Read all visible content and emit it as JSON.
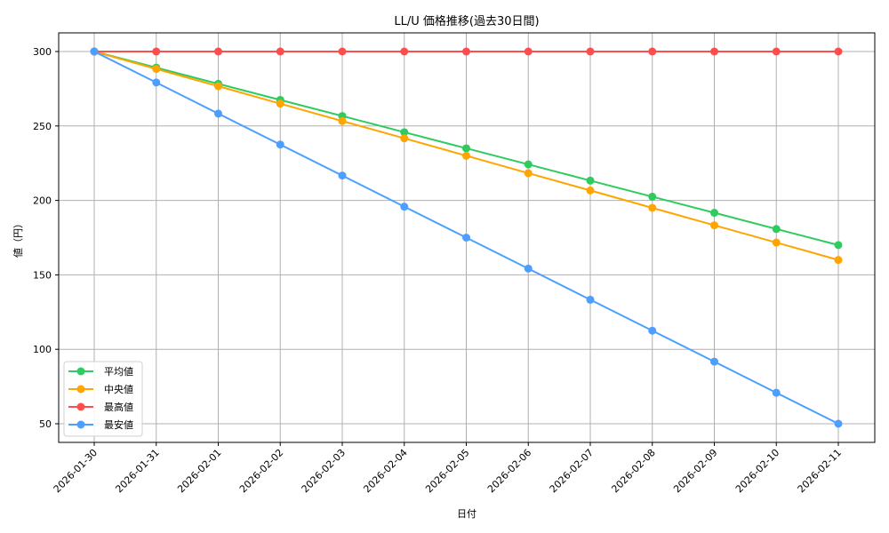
{
  "chart_data": {
    "type": "line",
    "title": "LL/U 価格推移(過去30日間)",
    "xlabel": "日付",
    "ylabel": "値（円）",
    "x": [
      "2026-01-30",
      "2026-01-31",
      "2026-02-01",
      "2026-02-02",
      "2026-02-03",
      "2026-02-04",
      "2026-02-05",
      "2026-02-06",
      "2026-02-07",
      "2026-02-08",
      "2026-02-09",
      "2026-02-10",
      "2026-02-11"
    ],
    "ylim": [
      37,
      313
    ],
    "yticks": [
      50,
      100,
      150,
      200,
      250,
      300
    ],
    "grid": true,
    "legend_position": "lower left",
    "series": [
      {
        "name": "平均値",
        "color": "#2ecc5f",
        "marker": "circle",
        "values": [
          300,
          289.2,
          278.3,
          267.5,
          256.7,
          245.8,
          235,
          224.2,
          213.3,
          202.5,
          191.7,
          180.8,
          170
        ]
      },
      {
        "name": "中央値",
        "color": "#ffa500",
        "marker": "circle",
        "values": [
          300,
          288.3,
          276.7,
          265,
          253.3,
          241.7,
          230,
          218.3,
          206.7,
          195,
          183.3,
          171.7,
          160
        ]
      },
      {
        "name": "最高値",
        "color": "#ff4d4d",
        "marker": "circle",
        "values": [
          300,
          300,
          300,
          300,
          300,
          300,
          300,
          300,
          300,
          300,
          300,
          300,
          300
        ]
      },
      {
        "name": "最安値",
        "color": "#4d9fff",
        "marker": "circle",
        "values": [
          300,
          279.2,
          258.3,
          237.5,
          216.7,
          195.8,
          175,
          154.2,
          133.3,
          112.5,
          91.7,
          70.8,
          50
        ]
      }
    ]
  }
}
